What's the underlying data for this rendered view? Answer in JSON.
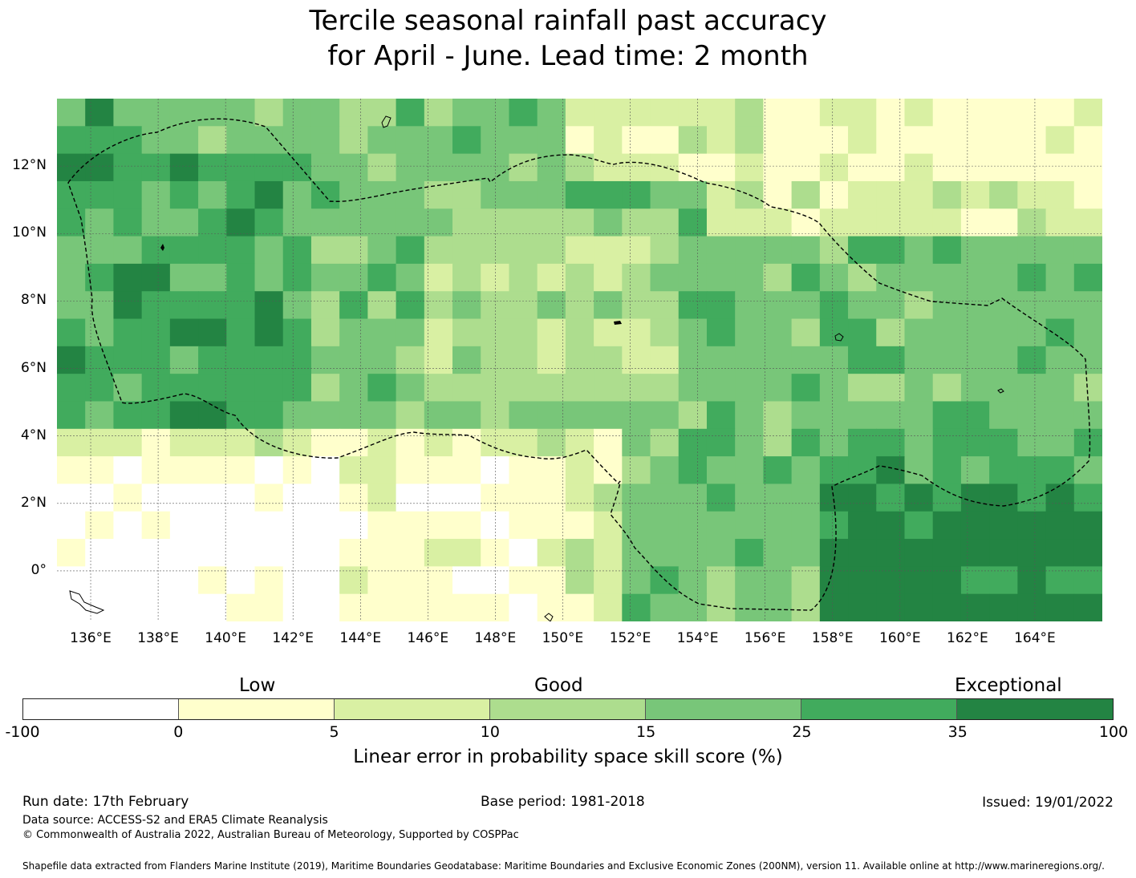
{
  "title": {
    "line1": "Tercile seasonal rainfall past accuracy",
    "line2": "for April - June. Lead time: 2 month"
  },
  "map": {
    "lon_labels": [
      "136°E",
      "138°E",
      "140°E",
      "142°E",
      "144°E",
      "146°E",
      "148°E",
      "150°E",
      "152°E",
      "154°E",
      "156°E",
      "158°E",
      "160°E",
      "162°E",
      "164°E"
    ],
    "lat_labels": [
      "12°N",
      "10°N",
      "8°N",
      "6°N",
      "4°N",
      "2°N",
      "0°"
    ],
    "lon_range": [
      135,
      166
    ],
    "lat_range": [
      -1.5,
      14
    ],
    "colors": [
      "#ffffff",
      "#ffffcc",
      "#d9f0a3",
      "#addd8e",
      "#78c679",
      "#41ab5d",
      "#238443"
    ]
  },
  "colorbar": {
    "categories": {
      "low": "Low",
      "good": "Good",
      "exceptional": "Exceptional"
    },
    "ticks": [
      "-100",
      "0",
      "5",
      "10",
      "15",
      "25",
      "35",
      "100"
    ],
    "label": "Linear error in probability space skill score (%)"
  },
  "footer": {
    "run_date": "Run date: 17th February",
    "base_period": "Base period: 1981-2018",
    "issued": "Issued: 19/01/2022",
    "data_source": "Data source: ACCESS-S2 and ERA5 Climate Reanalysis",
    "copyright": "© Commonwealth of Australia 2022, Australian Bureau of Meteorology, Supported by COSPPac",
    "shapefile": "Shapefile data extracted from Flanders Marine Institute (2019), Maritime Boundaries Geodatabase: Maritime Boundaries and Exclusive Economic Zones (200NM), version 11. Available online at http://www.marineregions.org/."
  }
}
